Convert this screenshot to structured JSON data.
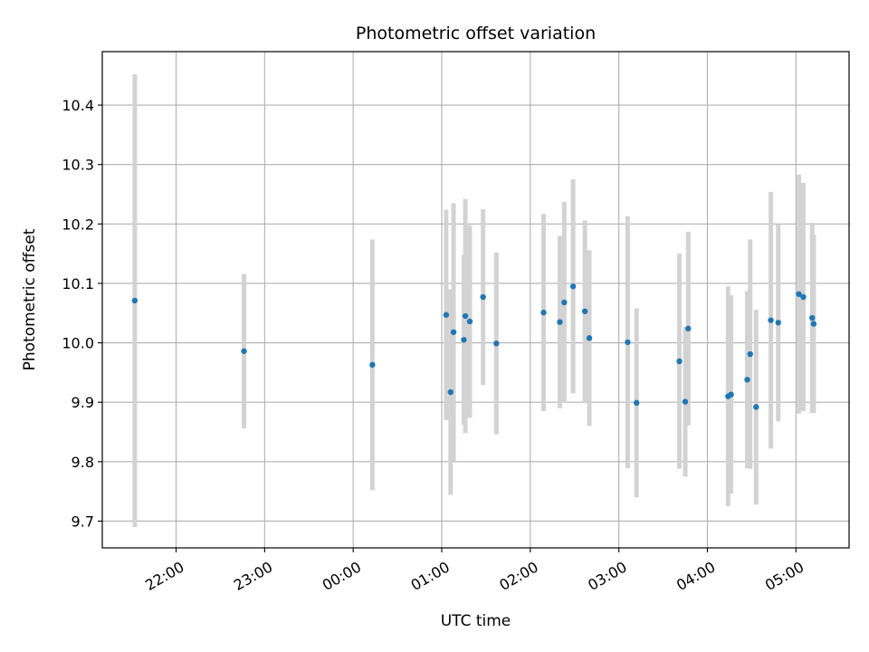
{
  "chart_data": {
    "type": "scatter",
    "title": "Photometric offset variation",
    "xlabel": "UTC time",
    "ylabel": "Photometric offset",
    "x_axis": {
      "kind": "time",
      "range": [
        "21:10",
        "05:36"
      ],
      "ticks": [
        "22:00",
        "23:00",
        "00:00",
        "01:00",
        "02:00",
        "03:00",
        "04:00",
        "05:00"
      ]
    },
    "y_axis": {
      "range": [
        9.655,
        10.49
      ],
      "ticks": [
        "9.7",
        "9.8",
        "9.9",
        "10.0",
        "10.1",
        "10.2",
        "10.3",
        "10.4"
      ]
    },
    "grid": true,
    "series": [
      {
        "marker_color": "#1f77b4",
        "errorbar_color": "#d3d3d3",
        "points": [
          {
            "x": "21:32",
            "y": 10.071,
            "err": 0.381
          },
          {
            "x": "22:46",
            "y": 9.986,
            "err": 0.13
          },
          {
            "x": "00:13",
            "y": 9.963,
            "err": 0.211
          },
          {
            "x": "01:03",
            "y": 10.047,
            "err": 0.177
          },
          {
            "x": "01:06",
            "y": 9.917,
            "err": 0.173
          },
          {
            "x": "01:08",
            "y": 10.018,
            "err": 0.217
          },
          {
            "x": "01:15",
            "y": 10.005,
            "err": 0.143
          },
          {
            "x": "01:16",
            "y": 10.045,
            "err": 0.197
          },
          {
            "x": "01:19",
            "y": 10.036,
            "err": 0.162
          },
          {
            "x": "01:28",
            "y": 10.077,
            "err": 0.148
          },
          {
            "x": "01:37",
            "y": 9.999,
            "err": 0.153
          },
          {
            "x": "02:09",
            "y": 10.051,
            "err": 0.166
          },
          {
            "x": "02:20",
            "y": 10.035,
            "err": 0.145
          },
          {
            "x": "02:23",
            "y": 10.068,
            "err": 0.169
          },
          {
            "x": "02:29",
            "y": 10.095,
            "err": 0.18
          },
          {
            "x": "02:37",
            "y": 10.053,
            "err": 0.153
          },
          {
            "x": "02:40",
            "y": 10.008,
            "err": 0.148
          },
          {
            "x": "03:06",
            "y": 10.001,
            "err": 0.212
          },
          {
            "x": "03:12",
            "y": 9.899,
            "err": 0.159
          },
          {
            "x": "03:41",
            "y": 9.969,
            "err": 0.181
          },
          {
            "x": "03:45",
            "y": 9.901,
            "err": 0.126
          },
          {
            "x": "03:47",
            "y": 10.024,
            "err": 0.163
          },
          {
            "x": "04:14",
            "y": 9.91,
            "err": 0.185
          },
          {
            "x": "04:16",
            "y": 9.913,
            "err": 0.167
          },
          {
            "x": "04:27",
            "y": 9.938,
            "err": 0.149
          },
          {
            "x": "04:29",
            "y": 9.981,
            "err": 0.193
          },
          {
            "x": "04:33",
            "y": 9.892,
            "err": 0.164
          },
          {
            "x": "04:43",
            "y": 10.038,
            "err": 0.216
          },
          {
            "x": "04:48",
            "y": 10.034,
            "err": 0.166
          },
          {
            "x": "05:02",
            "y": 10.082,
            "err": 0.201
          },
          {
            "x": "05:05",
            "y": 10.077,
            "err": 0.192
          },
          {
            "x": "05:11",
            "y": 10.042,
            "err": 0.16
          },
          {
            "x": "05:12",
            "y": 10.032,
            "err": 0.15
          }
        ]
      }
    ]
  }
}
